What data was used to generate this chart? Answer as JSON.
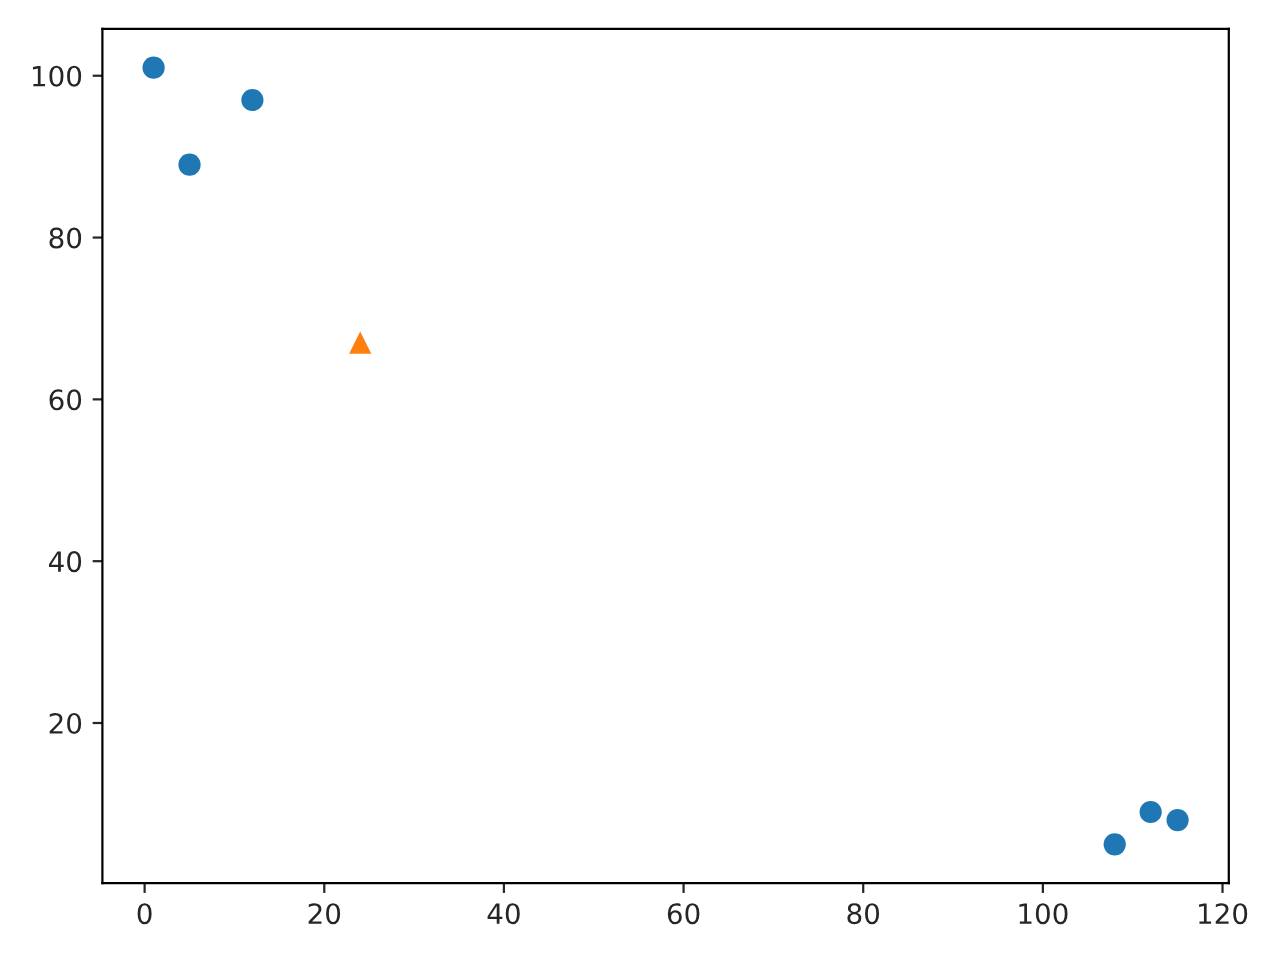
{
  "chart_data": {
    "type": "scatter",
    "series": [
      {
        "color": "#1f77b4",
        "marker": "circle",
        "x": [
          1,
          5,
          12,
          108,
          112,
          115
        ],
        "values": [
          101,
          89,
          97,
          5,
          9,
          8
        ]
      },
      {
        "color": "#ff7f0e",
        "marker": "triangle",
        "x": [
          24
        ],
        "values": [
          67
        ]
      }
    ],
    "xlim": [
      -4.7,
      120.7
    ],
    "ylim": [
      0.2,
      105.8
    ],
    "xticks": [
      0,
      20,
      40,
      60,
      80,
      100,
      120
    ],
    "yticks": [
      20,
      40,
      60,
      80,
      100
    ],
    "grid": false,
    "legend": false
  }
}
